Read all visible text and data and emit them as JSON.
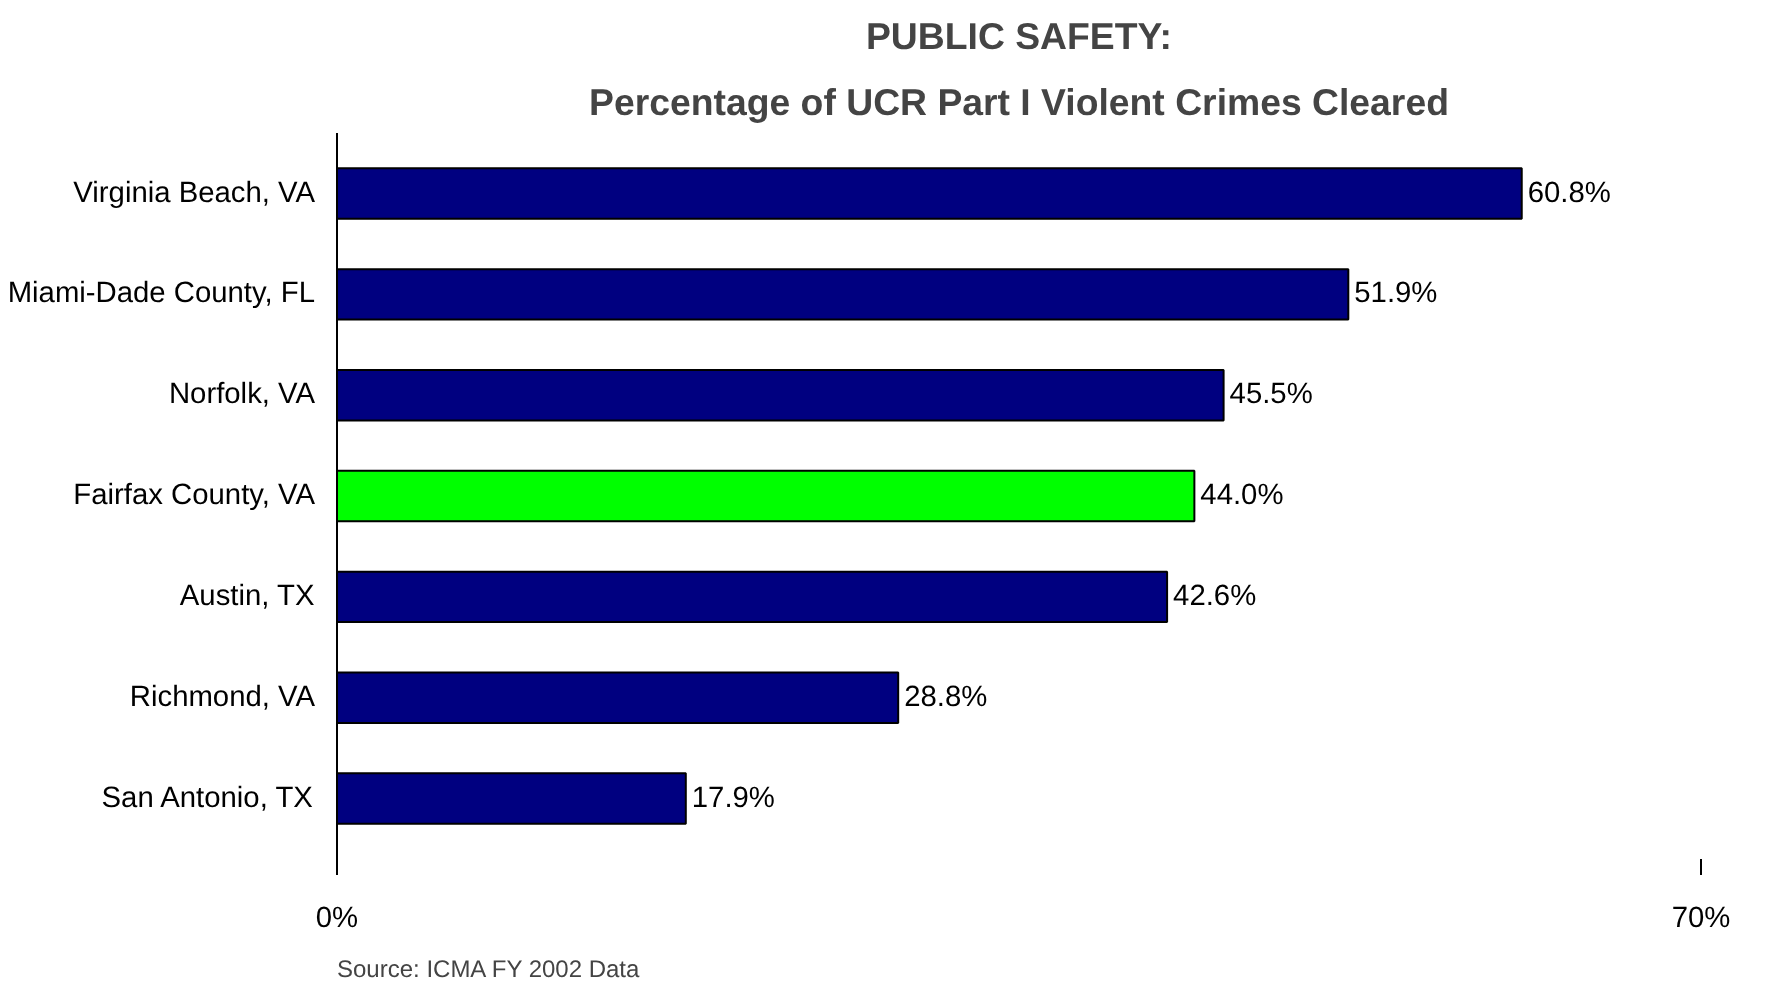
{
  "chart_data": {
    "type": "bar",
    "orientation": "horizontal",
    "title": "PUBLIC SAFETY:",
    "subtitle": "Percentage of UCR Part I Violent Crimes Cleared",
    "categories": [
      "Virginia Beach, VA",
      "Miami-Dade County, FL",
      "Norfolk, VA",
      "Fairfax County, VA",
      "Austin, TX",
      "Richmond, VA",
      "San Antonio, TX"
    ],
    "values": [
      60.8,
      51.9,
      45.5,
      44.0,
      42.6,
      28.8,
      17.9
    ],
    "colors": [
      "#000080",
      "#000080",
      "#000080",
      "#00ff00",
      "#000080",
      "#000080",
      "#000080"
    ],
    "value_labels": [
      "60.8%",
      "51.9%",
      "45.5%",
      "44.0%",
      "42.6%",
      "28.8%",
      "17.9%"
    ],
    "xlim": [
      0,
      70
    ],
    "xticks": [
      {
        "value": 0,
        "label": "0%"
      },
      {
        "value": 70,
        "label": "70%"
      }
    ],
    "grid": false,
    "annotations": [
      "Source: ICMA FY 2002 Data"
    ]
  }
}
